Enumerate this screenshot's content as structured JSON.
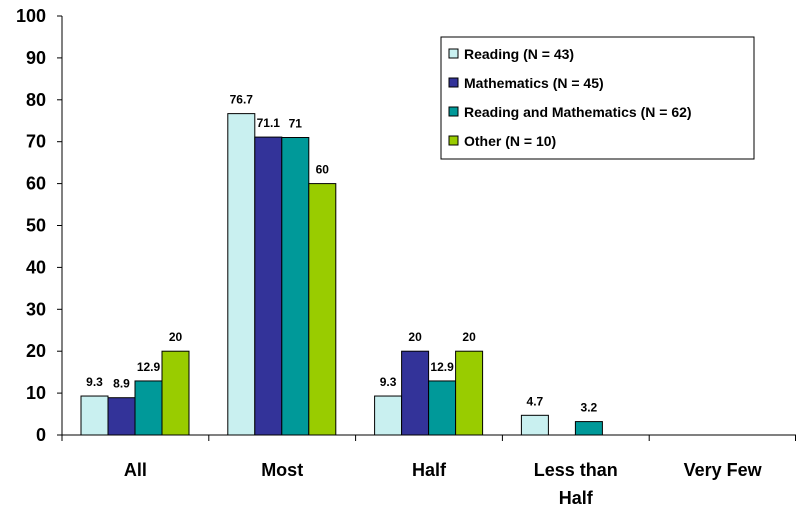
{
  "chart_data": {
    "type": "bar",
    "title": "",
    "xlabel": "",
    "ylabel": "",
    "ylim": [
      0,
      100
    ],
    "yticks": [
      0,
      10,
      20,
      30,
      40,
      50,
      60,
      70,
      80,
      90,
      100
    ],
    "grid": false,
    "legend_position": "top-right",
    "categories": [
      "All",
      "Most",
      "Half",
      "Less than Half",
      "Very Few"
    ],
    "series": [
      {
        "name": "Reading (N = 43)",
        "color": "#c9f0f0",
        "values": [
          9.3,
          76.7,
          9.3,
          4.7,
          null
        ]
      },
      {
        "name": "Mathematics (N = 45)",
        "color": "#333399",
        "values": [
          8.9,
          71.1,
          20,
          null,
          null
        ]
      },
      {
        "name": "Reading and Mathematics (N = 62)",
        "color": "#009999",
        "values": [
          12.9,
          71,
          12.9,
          3.2,
          null
        ]
      },
      {
        "name": "Other (N = 10)",
        "color": "#99cc00",
        "values": [
          20,
          60,
          20,
          null,
          null
        ]
      }
    ]
  }
}
